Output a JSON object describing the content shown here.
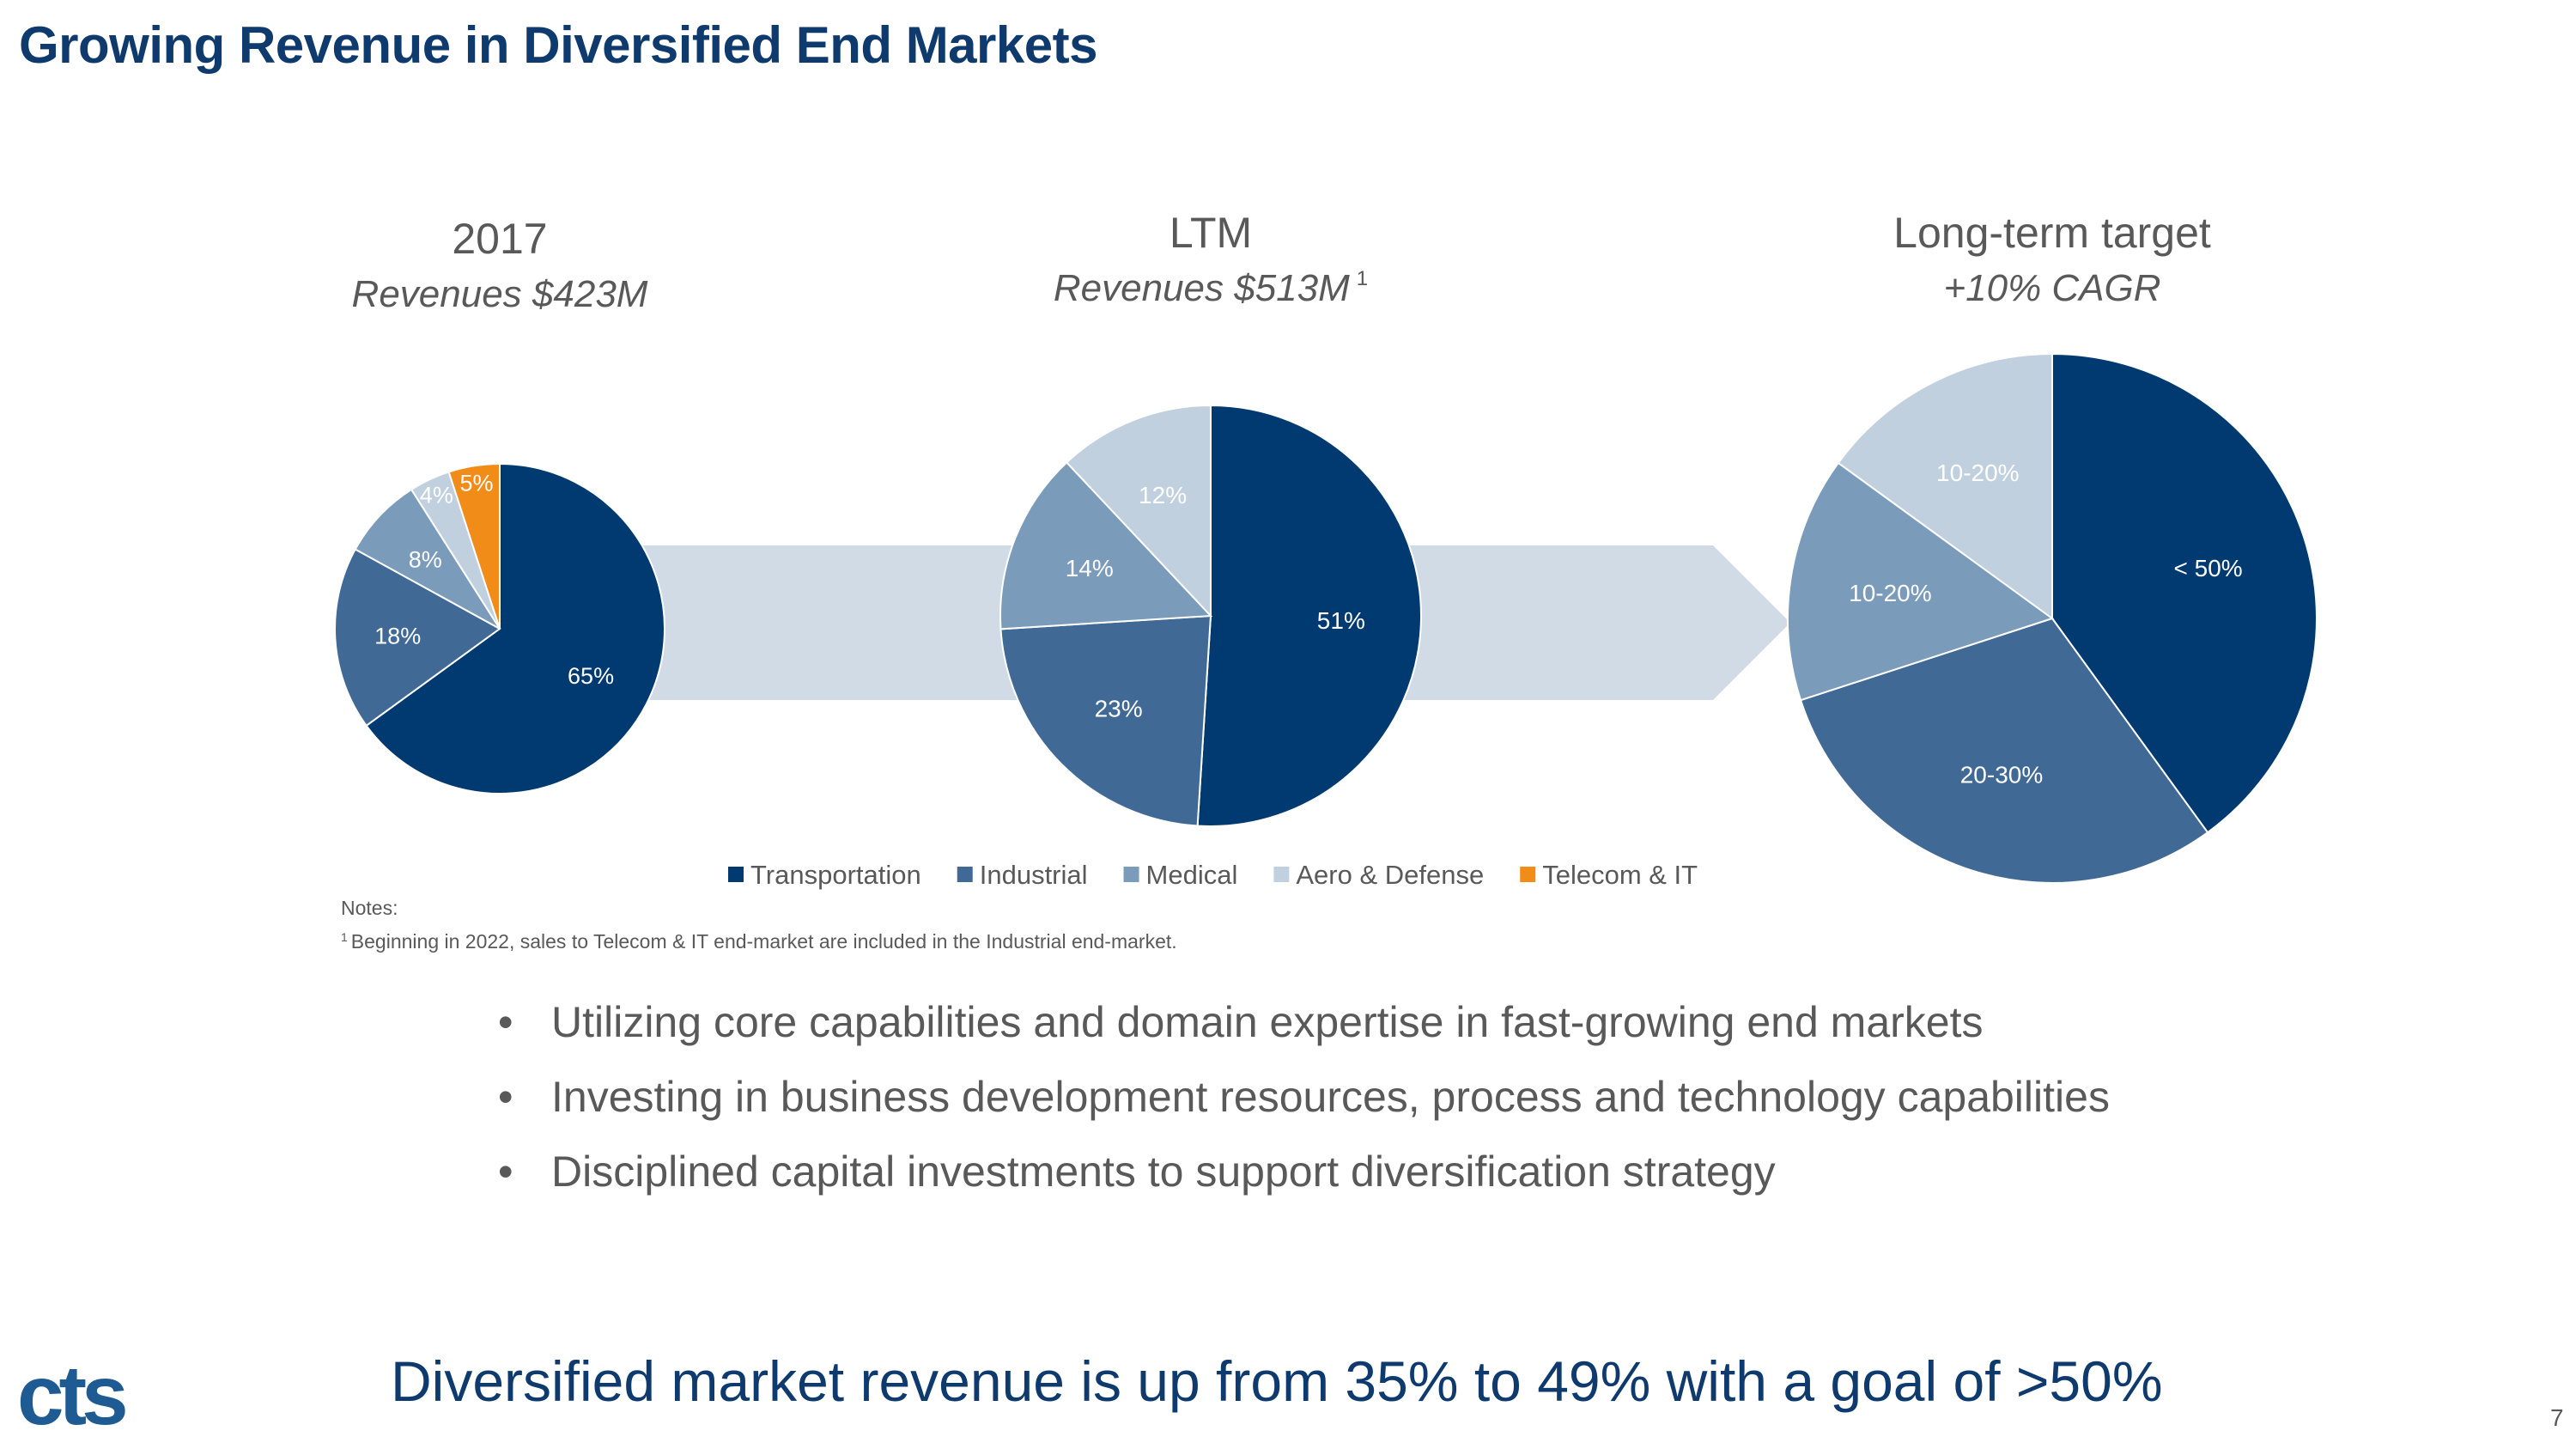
{
  "title": "Growing Revenue in Diversified End Markets",
  "colors": {
    "Transportation": "#003a70",
    "Industrial": "#406a95",
    "Medical": "#7b9bbb",
    "Aero & Defense": "#c1d0df",
    "Telecom & IT": "#f28c18",
    "arrow": "#d0dbe6",
    "title": "#0e3a6e"
  },
  "chart_data": [
    {
      "type": "pie",
      "title": "2017",
      "subtitle": "Revenues $423M",
      "superscript": "",
      "slices": [
        {
          "label": "Transportation",
          "value": 65,
          "display": "65%"
        },
        {
          "label": "Industrial",
          "value": 18,
          "display": "18%"
        },
        {
          "label": "Medical",
          "value": 8,
          "display": "8%"
        },
        {
          "label": "Aero & Defense",
          "value": 4,
          "display": "4%"
        },
        {
          "label": "Telecom & IT",
          "value": 5,
          "display": "5%"
        }
      ]
    },
    {
      "type": "pie",
      "title": "LTM",
      "subtitle": "Revenues $513M",
      "superscript": "1",
      "slices": [
        {
          "label": "Transportation",
          "value": 51,
          "display": "51%"
        },
        {
          "label": "Industrial",
          "value": 23,
          "display": "23%"
        },
        {
          "label": "Medical",
          "value": 14,
          "display": "14%"
        },
        {
          "label": "Aero & Defense",
          "value": 12,
          "display": "12%"
        }
      ]
    },
    {
      "type": "pie",
      "title": "Long-term target",
      "subtitle": "+10% CAGR",
      "superscript": "",
      "slices": [
        {
          "label": "Transportation",
          "value": 40,
          "display": "< 50%"
        },
        {
          "label": "Industrial",
          "value": 30,
          "display": "20-30%"
        },
        {
          "label": "Medical",
          "value": 15,
          "display": "10-20%"
        },
        {
          "label": "Aero & Defense",
          "value": 15,
          "display": "10-20%"
        }
      ]
    }
  ],
  "legend": [
    "Transportation",
    "Industrial",
    "Medical",
    "Aero & Defense",
    "Telecom & IT"
  ],
  "notes": {
    "heading": "Notes:",
    "superscript": "1",
    "text": "Beginning in 2022, sales to Telecom & IT end-market are included in the Industrial end-market."
  },
  "bullets": [
    "Utilizing core capabilities and domain expertise in fast-growing end markets",
    "Investing in business development resources, process and technology capabilities",
    "Disciplined capital investments to support diversification strategy"
  ],
  "footer": "Diversified market revenue is up from 35% to 49% with a goal of >50%",
  "logo": "cts",
  "page_number": "7"
}
